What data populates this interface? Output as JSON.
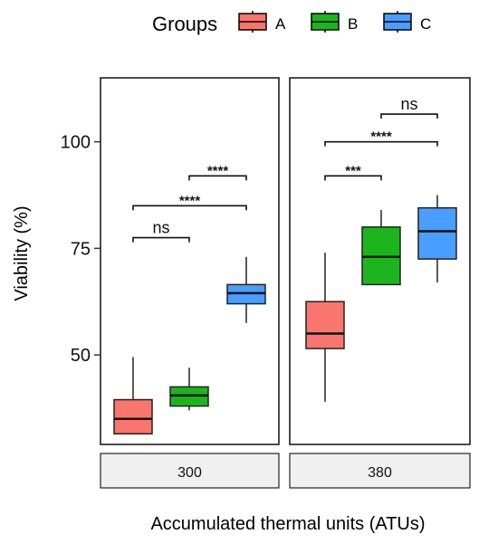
{
  "chart_data": {
    "type": "box",
    "legend": {
      "title": "Groups",
      "position": "top",
      "entries": [
        {
          "key": "A",
          "color": "#F8766D"
        },
        {
          "key": "B",
          "color": "#1DB51D"
        },
        {
          "key": "C",
          "color": "#4A9EFF"
        }
      ]
    },
    "ylabel": "Viability (%)",
    "xlabel": "Accumulated thermal units (ATUs)",
    "yticks": [
      50,
      75,
      100
    ],
    "ylim": [
      29,
      115
    ],
    "facets": [
      {
        "label": "300",
        "boxes": [
          {
            "group": "A",
            "min": 31.5,
            "q1": 31.5,
            "median": 35,
            "q3": 39.5,
            "max": 49.5
          },
          {
            "group": "B",
            "min": 37,
            "q1": 38,
            "median": 40.5,
            "q3": 42.5,
            "max": 47
          },
          {
            "group": "C",
            "min": 57.5,
            "q1": 62,
            "median": 64.5,
            "q3": 66.5,
            "max": 73
          }
        ],
        "comparisons": [
          {
            "from": "A",
            "to": "B",
            "y": 77.5,
            "label": "ns"
          },
          {
            "from": "A",
            "to": "C",
            "y": 85,
            "label": "****"
          },
          {
            "from": "B",
            "to": "C",
            "y": 92,
            "label": "****"
          }
        ]
      },
      {
        "label": "380",
        "boxes": [
          {
            "group": "A",
            "min": 39,
            "q1": 51.5,
            "median": 55,
            "q3": 62.5,
            "max": 74
          },
          {
            "group": "B",
            "min": 66.5,
            "q1": 66.5,
            "median": 73,
            "q3": 80,
            "max": 84
          },
          {
            "group": "C",
            "min": 67,
            "q1": 72.5,
            "median": 79,
            "q3": 84.5,
            "max": 87.5
          }
        ],
        "comparisons": [
          {
            "from": "A",
            "to": "B",
            "y": 92,
            "label": "***"
          },
          {
            "from": "A",
            "to": "C",
            "y": 100,
            "label": "****"
          },
          {
            "from": "B",
            "to": "C",
            "y": 106.5,
            "label": "ns"
          }
        ]
      }
    ]
  }
}
